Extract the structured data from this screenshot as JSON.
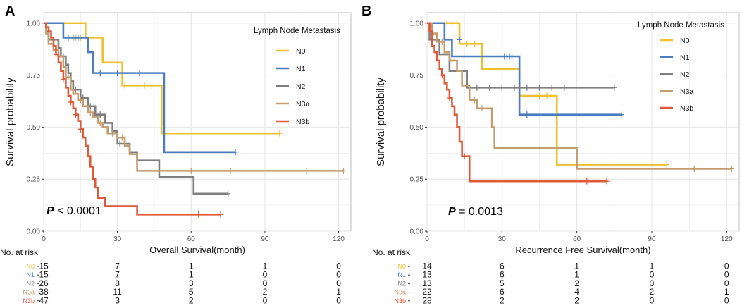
{
  "chart_data": [
    {
      "type": "line",
      "panel_label": "A",
      "xlabel": "Overall Survival(month)",
      "ylabel": "Survival probability",
      "xlim": [
        0,
        125
      ],
      "ylim": [
        0,
        1.05
      ],
      "xticks": [
        0,
        30,
        60,
        90,
        120
      ],
      "yticks": [
        0.0,
        0.25,
        0.5,
        0.75,
        1.0
      ],
      "xtick_labels": [
        "0",
        "30",
        "60",
        "90",
        "120"
      ],
      "ytick_labels": [
        "0.00",
        "0.25",
        "0.50",
        "0.75",
        "1.00"
      ],
      "legend_title": "Lymph Node Metastasis",
      "p_label": "P",
      "p_text": "< 0.0001",
      "risk_title": "No. at risk",
      "series": [
        {
          "name": "N0",
          "color": "#EFC12F",
          "steps": [
            [
              0,
              1.0
            ],
            [
              17,
              0.93
            ],
            [
              24,
              0.81
            ],
            [
              32,
              0.7
            ],
            [
              48,
              0.47
            ],
            [
              96,
              0.47
            ]
          ],
          "censors": [
            [
              10,
              0.93
            ],
            [
              13,
              0.93
            ],
            [
              15,
              0.93
            ],
            [
              33,
              0.7
            ],
            [
              38,
              0.7
            ],
            [
              41,
              0.7
            ],
            [
              44,
              0.7
            ],
            [
              96,
              0.47
            ]
          ],
          "risk": [
            "15",
            "7",
            "1",
            "1",
            "0"
          ]
        },
        {
          "name": "N1",
          "color": "#4A7DC0",
          "steps": [
            [
              0,
              1.0
            ],
            [
              8,
              0.93
            ],
            [
              18,
              0.86
            ],
            [
              20,
              0.76
            ],
            [
              49,
              0.38
            ],
            [
              78,
              0.38
            ]
          ],
          "censors": [
            [
              10,
              0.93
            ],
            [
              12,
              0.93
            ],
            [
              14,
              0.93
            ],
            [
              23,
              0.76
            ],
            [
              30,
              0.76
            ],
            [
              39,
              0.76
            ],
            [
              78,
              0.38
            ]
          ],
          "risk": [
            "15",
            "7",
            "1",
            "0",
            "0"
          ]
        },
        {
          "name": "N2",
          "color": "#7F7F7F",
          "steps": [
            [
              0,
              1.0
            ],
            [
              1,
              0.96
            ],
            [
              2,
              0.92
            ],
            [
              6,
              0.88
            ],
            [
              7,
              0.84
            ],
            [
              9,
              0.8
            ],
            [
              10,
              0.76
            ],
            [
              11,
              0.72
            ],
            [
              12,
              0.68
            ],
            [
              15,
              0.64
            ],
            [
              18,
              0.6
            ],
            [
              21,
              0.56
            ],
            [
              25,
              0.52
            ],
            [
              28,
              0.48
            ],
            [
              30,
              0.42
            ],
            [
              35,
              0.38
            ],
            [
              38,
              0.34
            ],
            [
              47,
              0.26
            ],
            [
              61,
              0.18
            ],
            [
              75,
              0.18
            ]
          ],
          "censors": [
            [
              8,
              0.84
            ],
            [
              13,
              0.68
            ],
            [
              16,
              0.64
            ],
            [
              19,
              0.6
            ],
            [
              23,
              0.56
            ],
            [
              31,
              0.42
            ],
            [
              75,
              0.18
            ]
          ],
          "risk": [
            "26",
            "8",
            "3",
            "0",
            "0"
          ]
        },
        {
          "name": "N3a",
          "color": "#C49C6D",
          "steps": [
            [
              0,
              1.0
            ],
            [
              1,
              0.95
            ],
            [
              2,
              0.9
            ],
            [
              4,
              0.87
            ],
            [
              6,
              0.84
            ],
            [
              8,
              0.79
            ],
            [
              9,
              0.74
            ],
            [
              11,
              0.68
            ],
            [
              12,
              0.66
            ],
            [
              14,
              0.63
            ],
            [
              16,
              0.6
            ],
            [
              18,
              0.57
            ],
            [
              20,
              0.55
            ],
            [
              22,
              0.52
            ],
            [
              24,
              0.5
            ],
            [
              26,
              0.47
            ],
            [
              30,
              0.45
            ],
            [
              33,
              0.41
            ],
            [
              35,
              0.37
            ],
            [
              38,
              0.29
            ],
            [
              122,
              0.29
            ]
          ],
          "censors": [
            [
              10,
              0.74
            ],
            [
              15,
              0.63
            ],
            [
              19,
              0.57
            ],
            [
              23,
              0.52
            ],
            [
              28,
              0.47
            ],
            [
              32,
              0.45
            ],
            [
              60,
              0.29
            ],
            [
              76,
              0.29
            ],
            [
              107,
              0.29
            ],
            [
              122,
              0.29
            ]
          ],
          "risk": [
            "38",
            "11",
            "5",
            "2",
            "1"
          ]
        },
        {
          "name": "N3b",
          "color": "#E05A3A",
          "steps": [
            [
              0,
              1.0
            ],
            [
              1,
              0.98
            ],
            [
              2,
              0.96
            ],
            [
              3,
              0.93
            ],
            [
              4,
              0.89
            ],
            [
              5,
              0.85
            ],
            [
              6,
              0.81
            ],
            [
              7,
              0.77
            ],
            [
              8,
              0.73
            ],
            [
              9,
              0.69
            ],
            [
              10,
              0.65
            ],
            [
              11,
              0.62
            ],
            [
              12,
              0.59
            ],
            [
              13,
              0.56
            ],
            [
              14,
              0.53
            ],
            [
              15,
              0.49
            ],
            [
              16,
              0.45
            ],
            [
              17,
              0.41
            ],
            [
              18,
              0.36
            ],
            [
              19,
              0.31
            ],
            [
              20,
              0.25
            ],
            [
              21,
              0.21
            ],
            [
              22,
              0.16
            ],
            [
              25,
              0.12
            ],
            [
              38,
              0.08
            ],
            [
              72,
              0.08
            ]
          ],
          "censors": [
            [
              5,
              0.85
            ],
            [
              8,
              0.73
            ],
            [
              11,
              0.62
            ],
            [
              13,
              0.56
            ],
            [
              15,
              0.49
            ],
            [
              63,
              0.08
            ],
            [
              72,
              0.08
            ]
          ],
          "risk": [
            "47",
            "3",
            "2",
            "0",
            "0"
          ]
        }
      ]
    },
    {
      "type": "line",
      "panel_label": "B",
      "xlabel": "Recurrence Free Survival(month)",
      "ylabel": "Survival probability",
      "xlim": [
        0,
        125
      ],
      "ylim": [
        0,
        1.05
      ],
      "xticks": [
        0,
        30,
        60,
        90,
        120
      ],
      "yticks": [
        0.0,
        0.25,
        0.5,
        0.75,
        1.0
      ],
      "xtick_labels": [
        "0",
        "30",
        "60",
        "90",
        "120"
      ],
      "ytick_labels": [
        "0.00",
        "0.25",
        "0.50",
        "0.75",
        "1.00"
      ],
      "legend_title": "Lymph Node Metastasis",
      "p_label": "P",
      "p_text": "= 0.0013",
      "risk_title": "No. at risk",
      "series": [
        {
          "name": "N0",
          "color": "#EFC12F",
          "steps": [
            [
              0,
              1.0
            ],
            [
              13,
              0.9
            ],
            [
              22,
              0.78
            ],
            [
              37,
              0.65
            ],
            [
              52,
              0.32
            ],
            [
              96,
              0.32
            ]
          ],
          "censors": [
            [
              8,
              1.0
            ],
            [
              10,
              1.0
            ],
            [
              12,
              1.0
            ],
            [
              16,
              0.9
            ],
            [
              19,
              0.9
            ],
            [
              45,
              0.65
            ],
            [
              48,
              0.65
            ],
            [
              96,
              0.32
            ]
          ],
          "risk": [
            "14",
            "6",
            "1",
            "1",
            "0"
          ]
        },
        {
          "name": "N1",
          "color": "#4A7DC0",
          "steps": [
            [
              0,
              1.0
            ],
            [
              7,
              0.92
            ],
            [
              10,
              0.84
            ],
            [
              37,
              0.56
            ],
            [
              78,
              0.56
            ]
          ],
          "censors": [
            [
              13,
              0.92
            ],
            [
              31,
              0.84
            ],
            [
              32,
              0.84
            ],
            [
              33,
              0.84
            ],
            [
              34,
              0.84
            ],
            [
              40,
              0.56
            ],
            [
              78,
              0.56
            ]
          ],
          "risk": [
            "13",
            "6",
            "1",
            "0",
            "0"
          ]
        },
        {
          "name": "N2",
          "color": "#7F7F7F",
          "steps": [
            [
              0,
              1.0
            ],
            [
              1,
              0.92
            ],
            [
              5,
              0.85
            ],
            [
              9,
              0.77
            ],
            [
              16,
              0.69
            ],
            [
              75,
              0.69
            ]
          ],
          "censors": [
            [
              20,
              0.69
            ],
            [
              25,
              0.69
            ],
            [
              30,
              0.69
            ],
            [
              35,
              0.69
            ],
            [
              40,
              0.69
            ],
            [
              45,
              0.69
            ],
            [
              50,
              0.69
            ],
            [
              55,
              0.69
            ],
            [
              75,
              0.69
            ]
          ],
          "risk": [
            "13",
            "5",
            "2",
            "0",
            "0"
          ]
        },
        {
          "name": "N3a",
          "color": "#C49C6D",
          "steps": [
            [
              0,
              1.0
            ],
            [
              2,
              0.95
            ],
            [
              4,
              0.91
            ],
            [
              7,
              0.86
            ],
            [
              9,
              0.82
            ],
            [
              12,
              0.77
            ],
            [
              14,
              0.7
            ],
            [
              17,
              0.63
            ],
            [
              20,
              0.59
            ],
            [
              26,
              0.5
            ],
            [
              27,
              0.4
            ],
            [
              60,
              0.3
            ],
            [
              122,
              0.3
            ]
          ],
          "censors": [
            [
              6,
              0.91
            ],
            [
              10,
              0.82
            ],
            [
              19,
              0.63
            ],
            [
              22,
              0.59
            ],
            [
              107,
              0.3
            ],
            [
              122,
              0.3
            ]
          ],
          "risk": [
            "22",
            "6",
            "4",
            "2",
            "1"
          ]
        },
        {
          "name": "N3b",
          "color": "#E05A3A",
          "steps": [
            [
              0,
              1.0
            ],
            [
              1,
              0.96
            ],
            [
              2,
              0.89
            ],
            [
              3,
              0.86
            ],
            [
              4,
              0.82
            ],
            [
              5,
              0.78
            ],
            [
              6,
              0.75
            ],
            [
              7,
              0.71
            ],
            [
              8,
              0.68
            ],
            [
              9,
              0.64
            ],
            [
              10,
              0.6
            ],
            [
              11,
              0.56
            ],
            [
              12,
              0.5
            ],
            [
              13,
              0.43
            ],
            [
              14,
              0.36
            ],
            [
              17,
              0.24
            ],
            [
              72,
              0.24
            ]
          ],
          "censors": [
            [
              6,
              0.75
            ],
            [
              9,
              0.64
            ],
            [
              15,
              0.36
            ],
            [
              64,
              0.24
            ],
            [
              72,
              0.24
            ]
          ],
          "risk": [
            "28",
            "2",
            "2",
            "0",
            "0"
          ]
        }
      ]
    }
  ]
}
